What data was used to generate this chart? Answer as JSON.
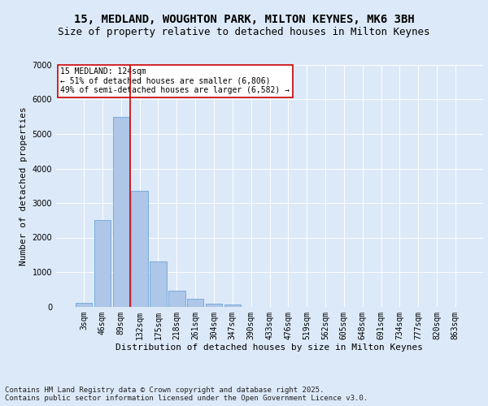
{
  "title1": "15, MEDLAND, WOUGHTON PARK, MILTON KEYNES, MK6 3BH",
  "title2": "Size of property relative to detached houses in Milton Keynes",
  "xlabel": "Distribution of detached houses by size in Milton Keynes",
  "ylabel": "Number of detached properties",
  "categories": [
    "3sqm",
    "46sqm",
    "89sqm",
    "132sqm",
    "175sqm",
    "218sqm",
    "261sqm",
    "304sqm",
    "347sqm",
    "390sqm",
    "433sqm",
    "476sqm",
    "519sqm",
    "562sqm",
    "605sqm",
    "648sqm",
    "691sqm",
    "734sqm",
    "777sqm",
    "820sqm",
    "863sqm"
  ],
  "values": [
    100,
    2500,
    5500,
    3350,
    1300,
    460,
    220,
    90,
    50,
    0,
    0,
    0,
    0,
    0,
    0,
    0,
    0,
    0,
    0,
    0,
    0
  ],
  "bar_color": "#aec6e8",
  "bar_edge_color": "#5b9bd5",
  "vline_color": "#cc0000",
  "vline_pos": 2.5,
  "annotation_text": "15 MEDLAND: 124sqm\n← 51% of detached houses are smaller (6,806)\n49% of semi-detached houses are larger (6,582) →",
  "annotation_box_color": "#ffffff",
  "annotation_box_edge": "#cc0000",
  "ylim": [
    0,
    7000
  ],
  "yticks": [
    0,
    1000,
    2000,
    3000,
    4000,
    5000,
    6000,
    7000
  ],
  "bg_color": "#dce9f8",
  "plot_bg_color": "#dce9f8",
  "footer": "Contains HM Land Registry data © Crown copyright and database right 2025.\nContains public sector information licensed under the Open Government Licence v3.0.",
  "title_fontsize": 10,
  "subtitle_fontsize": 9,
  "axis_label_fontsize": 8,
  "tick_fontsize": 7,
  "footer_fontsize": 6.5
}
